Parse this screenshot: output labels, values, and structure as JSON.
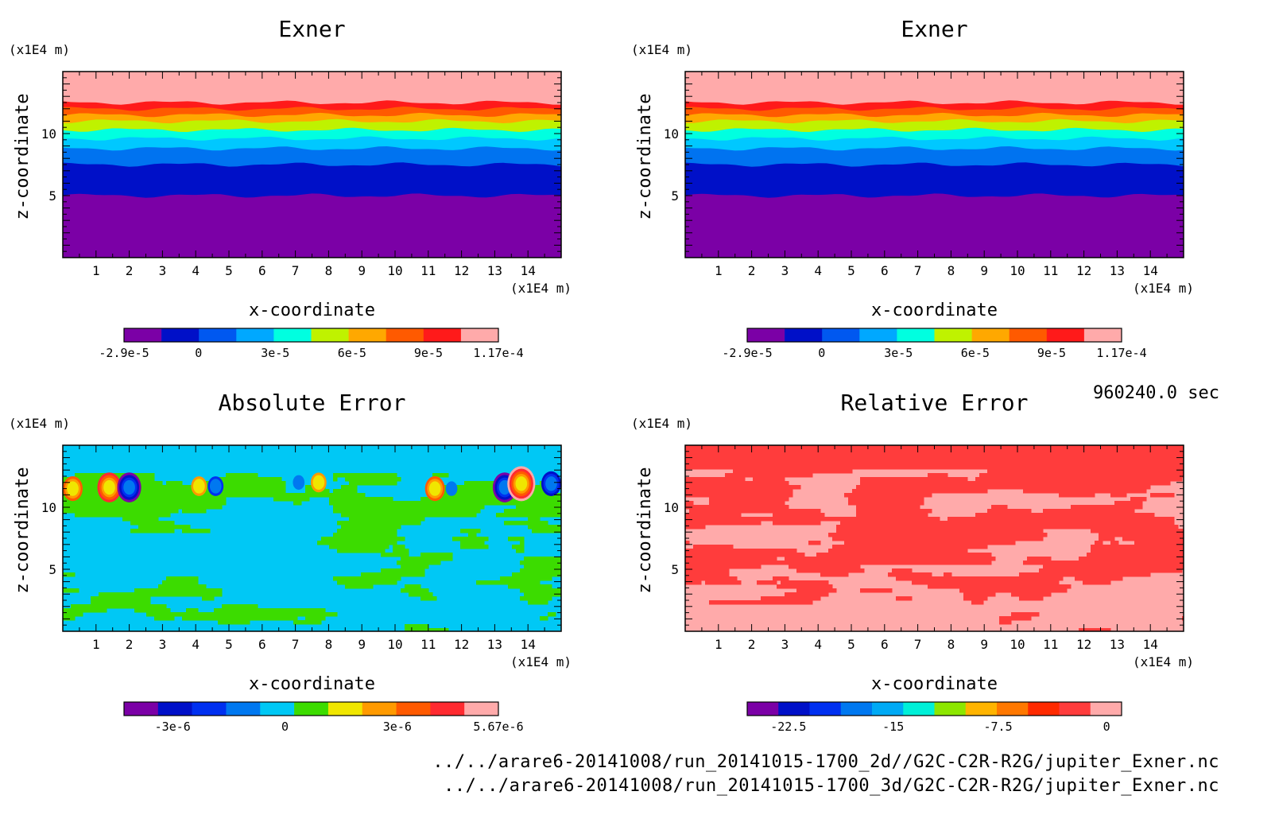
{
  "time_label": "960240.0 sec",
  "footer": {
    "line1": "../../arare6-20141008/run_20141015-1700_2d//G2C-C2R-R2G/jupiter_Exner.nc",
    "line2": "../../arare6-20141008/run_20141015-1700_3d/G2C-C2R-R2G/jupiter_Exner.nc"
  },
  "chart_data": [
    {
      "type": "heatmap",
      "title": "Exner",
      "xlabel": "x-coordinate",
      "ylabel": "z-coordinate",
      "x_unit": "(x1E4 m)",
      "z_unit": "(x1E4 m)",
      "xlim": [
        0,
        15
      ],
      "zlim": [
        0,
        15
      ],
      "x_ticks": [
        "1",
        "2",
        "3",
        "4",
        "5",
        "6",
        "7",
        "8",
        "9",
        "10",
        "11",
        "12",
        "13",
        "14"
      ],
      "z_ticks": [
        "5",
        "10"
      ],
      "field": "horizontal-bands",
      "bands": [
        {
          "z_from": 0,
          "z_to": 5.0,
          "color": "#7b00a6"
        },
        {
          "z_from": 5.0,
          "z_to": 7.5,
          "color": "#0010c8"
        },
        {
          "z_from": 7.5,
          "z_to": 8.8,
          "color": "#0073f0"
        },
        {
          "z_from": 8.8,
          "z_to": 9.6,
          "color": "#00c8ff"
        },
        {
          "z_from": 9.6,
          "z_to": 10.3,
          "color": "#00ffe0"
        },
        {
          "z_from": 10.3,
          "z_to": 11.0,
          "color": "#bff200"
        },
        {
          "z_from": 11.0,
          "z_to": 11.5,
          "color": "#ffa800"
        },
        {
          "z_from": 11.5,
          "z_to": 12.0,
          "color": "#ff5a00"
        },
        {
          "z_from": 12.0,
          "z_to": 12.5,
          "color": "#ff1a1a"
        },
        {
          "z_from": 12.5,
          "z_to": 15.0,
          "color": "#ffaaaa"
        }
      ],
      "colorbar": {
        "colors": [
          "#7b00a6",
          "#0010c8",
          "#0058f0",
          "#00a8ff",
          "#00ffe0",
          "#bff200",
          "#ffa800",
          "#ff5a00",
          "#ff1a1a",
          "#ffaaaa"
        ],
        "labels": [
          "-2.9e-5",
          "0",
          "3e-5",
          "6e-5",
          "9e-5",
          "1.17e-4"
        ]
      }
    },
    {
      "type": "heatmap",
      "title": "Exner",
      "xlabel": "x-coordinate",
      "ylabel": "z-coordinate",
      "x_unit": "(x1E4 m)",
      "z_unit": "(x1E4 m)",
      "xlim": [
        0,
        15
      ],
      "zlim": [
        0,
        15
      ],
      "x_ticks": [
        "1",
        "2",
        "3",
        "4",
        "5",
        "6",
        "7",
        "8",
        "9",
        "10",
        "11",
        "12",
        "13",
        "14"
      ],
      "z_ticks": [
        "5",
        "10"
      ],
      "field": "horizontal-bands",
      "bands": [
        {
          "z_from": 0,
          "z_to": 5.0,
          "color": "#7b00a6"
        },
        {
          "z_from": 5.0,
          "z_to": 7.5,
          "color": "#0010c8"
        },
        {
          "z_from": 7.5,
          "z_to": 8.8,
          "color": "#0073f0"
        },
        {
          "z_from": 8.8,
          "z_to": 9.6,
          "color": "#00c8ff"
        },
        {
          "z_from": 9.6,
          "z_to": 10.3,
          "color": "#00ffe0"
        },
        {
          "z_from": 10.3,
          "z_to": 11.0,
          "color": "#bff200"
        },
        {
          "z_from": 11.0,
          "z_to": 11.5,
          "color": "#ffa800"
        },
        {
          "z_from": 11.5,
          "z_to": 12.0,
          "color": "#ff5a00"
        },
        {
          "z_from": 12.0,
          "z_to": 12.5,
          "color": "#ff1a1a"
        },
        {
          "z_from": 12.5,
          "z_to": 15.0,
          "color": "#ffaaaa"
        }
      ],
      "colorbar": {
        "colors": [
          "#7b00a6",
          "#0010c8",
          "#0058f0",
          "#00a8ff",
          "#00ffe0",
          "#bff200",
          "#ffa800",
          "#ff5a00",
          "#ff1a1a",
          "#ffaaaa"
        ],
        "labels": [
          "-2.9e-5",
          "0",
          "3e-5",
          "6e-5",
          "9e-5",
          "1.17e-4"
        ]
      }
    },
    {
      "type": "heatmap",
      "title": "Absolute Error",
      "xlabel": "x-coordinate",
      "ylabel": "z-coordinate",
      "x_unit": "(x1E4 m)",
      "z_unit": "(x1E4 m)",
      "xlim": [
        0,
        15
      ],
      "zlim": [
        0,
        15
      ],
      "x_ticks": [
        "1",
        "2",
        "3",
        "4",
        "5",
        "6",
        "7",
        "8",
        "9",
        "10",
        "11",
        "12",
        "13",
        "14"
      ],
      "z_ticks": [
        "5",
        "10"
      ],
      "field": "absolute-error",
      "background": "#00c8f5",
      "secondary": "#3cdc00",
      "features": [
        {
          "x": 0.3,
          "z": 11.5,
          "sign": 1,
          "strength": 3
        },
        {
          "x": 1.4,
          "z": 11.6,
          "sign": 1,
          "strength": 4
        },
        {
          "x": 2.0,
          "z": 11.6,
          "sign": -1,
          "strength": 4
        },
        {
          "x": 4.1,
          "z": 11.7,
          "sign": 1,
          "strength": 2
        },
        {
          "x": 4.6,
          "z": 11.7,
          "sign": -1,
          "strength": 2
        },
        {
          "x": 7.1,
          "z": 12.0,
          "sign": -1,
          "strength": 1
        },
        {
          "x": 7.7,
          "z": 12.0,
          "sign": 1,
          "strength": 2
        },
        {
          "x": 11.2,
          "z": 11.5,
          "sign": 1,
          "strength": 3
        },
        {
          "x": 11.7,
          "z": 11.5,
          "sign": -1,
          "strength": 1
        },
        {
          "x": 13.3,
          "z": 11.6,
          "sign": -1,
          "strength": 4
        },
        {
          "x": 13.8,
          "z": 11.9,
          "sign": 1,
          "strength": 5
        },
        {
          "x": 14.7,
          "z": 11.9,
          "sign": -1,
          "strength": 3
        }
      ],
      "colorbar": {
        "colors": [
          "#7b00a6",
          "#0010c8",
          "#0030f0",
          "#0078f0",
          "#00c8f5",
          "#3cdc00",
          "#f0e600",
          "#ff9a00",
          "#ff5a00",
          "#ff2a30",
          "#ffaaaa"
        ],
        "labels": [
          "-3e-6",
          "0",
          "3e-6",
          "5.67e-6"
        ]
      }
    },
    {
      "type": "heatmap",
      "title": "Relative Error",
      "xlabel": "x-coordinate",
      "ylabel": "z-coordinate",
      "x_unit": "(x1E4 m)",
      "z_unit": "(x1E4 m)",
      "xlim": [
        0,
        15
      ],
      "zlim": [
        0,
        15
      ],
      "x_ticks": [
        "1",
        "2",
        "3",
        "4",
        "5",
        "6",
        "7",
        "8",
        "9",
        "10",
        "11",
        "12",
        "13",
        "14"
      ],
      "z_ticks": [
        "5",
        "10"
      ],
      "field": "relative-error",
      "background": "#ffaaaa",
      "secondary": "#ff3c3c",
      "colorbar": {
        "colors": [
          "#7b00a6",
          "#0010c8",
          "#0030f0",
          "#0078f0",
          "#00aaf5",
          "#00f0d8",
          "#8ce600",
          "#ffb400",
          "#ff7800",
          "#ff2a00",
          "#ff3c3c",
          "#ffaaaa"
        ],
        "labels": [
          "-22.5",
          "-15",
          "-7.5",
          "0"
        ]
      }
    }
  ]
}
